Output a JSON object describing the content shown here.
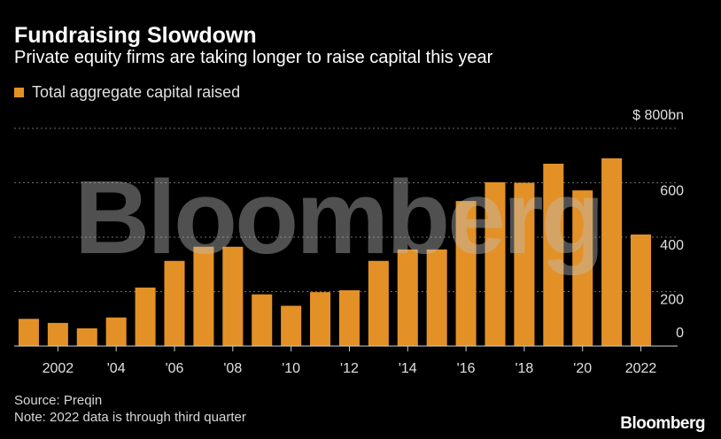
{
  "header": {
    "title": "Fundraising Slowdown",
    "subtitle": "Private equity firms are taking longer to raise capital this year"
  },
  "colors": {
    "bar": "#e39126",
    "background": "#000000",
    "grid": "#6b6b6b",
    "text": "#ffffff"
  },
  "chart_data": {
    "type": "bar",
    "series": [
      {
        "name": "Total aggregate capital raised",
        "values": [
          100,
          85,
          65,
          105,
          215,
          313,
          365,
          365,
          190,
          148,
          198,
          205,
          313,
          355,
          355,
          533,
          602,
          600,
          670,
          572,
          690,
          410
        ]
      }
    ],
    "categories": [
      "2001",
      "2002",
      "2003",
      "2004",
      "2005",
      "2006",
      "2007",
      "2008",
      "2009",
      "2010",
      "2011",
      "2012",
      "2013",
      "2014",
      "2015",
      "2016",
      "2017",
      "2018",
      "2019",
      "2020",
      "2021",
      "2022"
    ],
    "x_tick_labels": [
      {
        "category": "2002",
        "label": "2002"
      },
      {
        "category": "2004",
        "label": "'04"
      },
      {
        "category": "2006",
        "label": "'06"
      },
      {
        "category": "2008",
        "label": "'08"
      },
      {
        "category": "2010",
        "label": "'10"
      },
      {
        "category": "2012",
        "label": "'12"
      },
      {
        "category": "2014",
        "label": "'14"
      },
      {
        "category": "2016",
        "label": "'16"
      },
      {
        "category": "2018",
        "label": "'18"
      },
      {
        "category": "2020",
        "label": "'20"
      },
      {
        "category": "2022",
        "label": "2022"
      }
    ],
    "y_ticks": [
      {
        "value": 0,
        "label": "0"
      },
      {
        "value": 200,
        "label": "200"
      },
      {
        "value": 400,
        "label": "400"
      },
      {
        "value": 600,
        "label": "600"
      },
      {
        "value": 800,
        "label": "$ 800bn"
      }
    ],
    "ylim": [
      0,
      800
    ],
    "grid": true,
    "legend_position": "top-left",
    "y_axis_position": "right",
    "watermark": "Bloomberg"
  },
  "footer": {
    "source": "Source: Preqin",
    "note": "Note: 2022 data is through third quarter",
    "logo": "Bloomberg"
  }
}
